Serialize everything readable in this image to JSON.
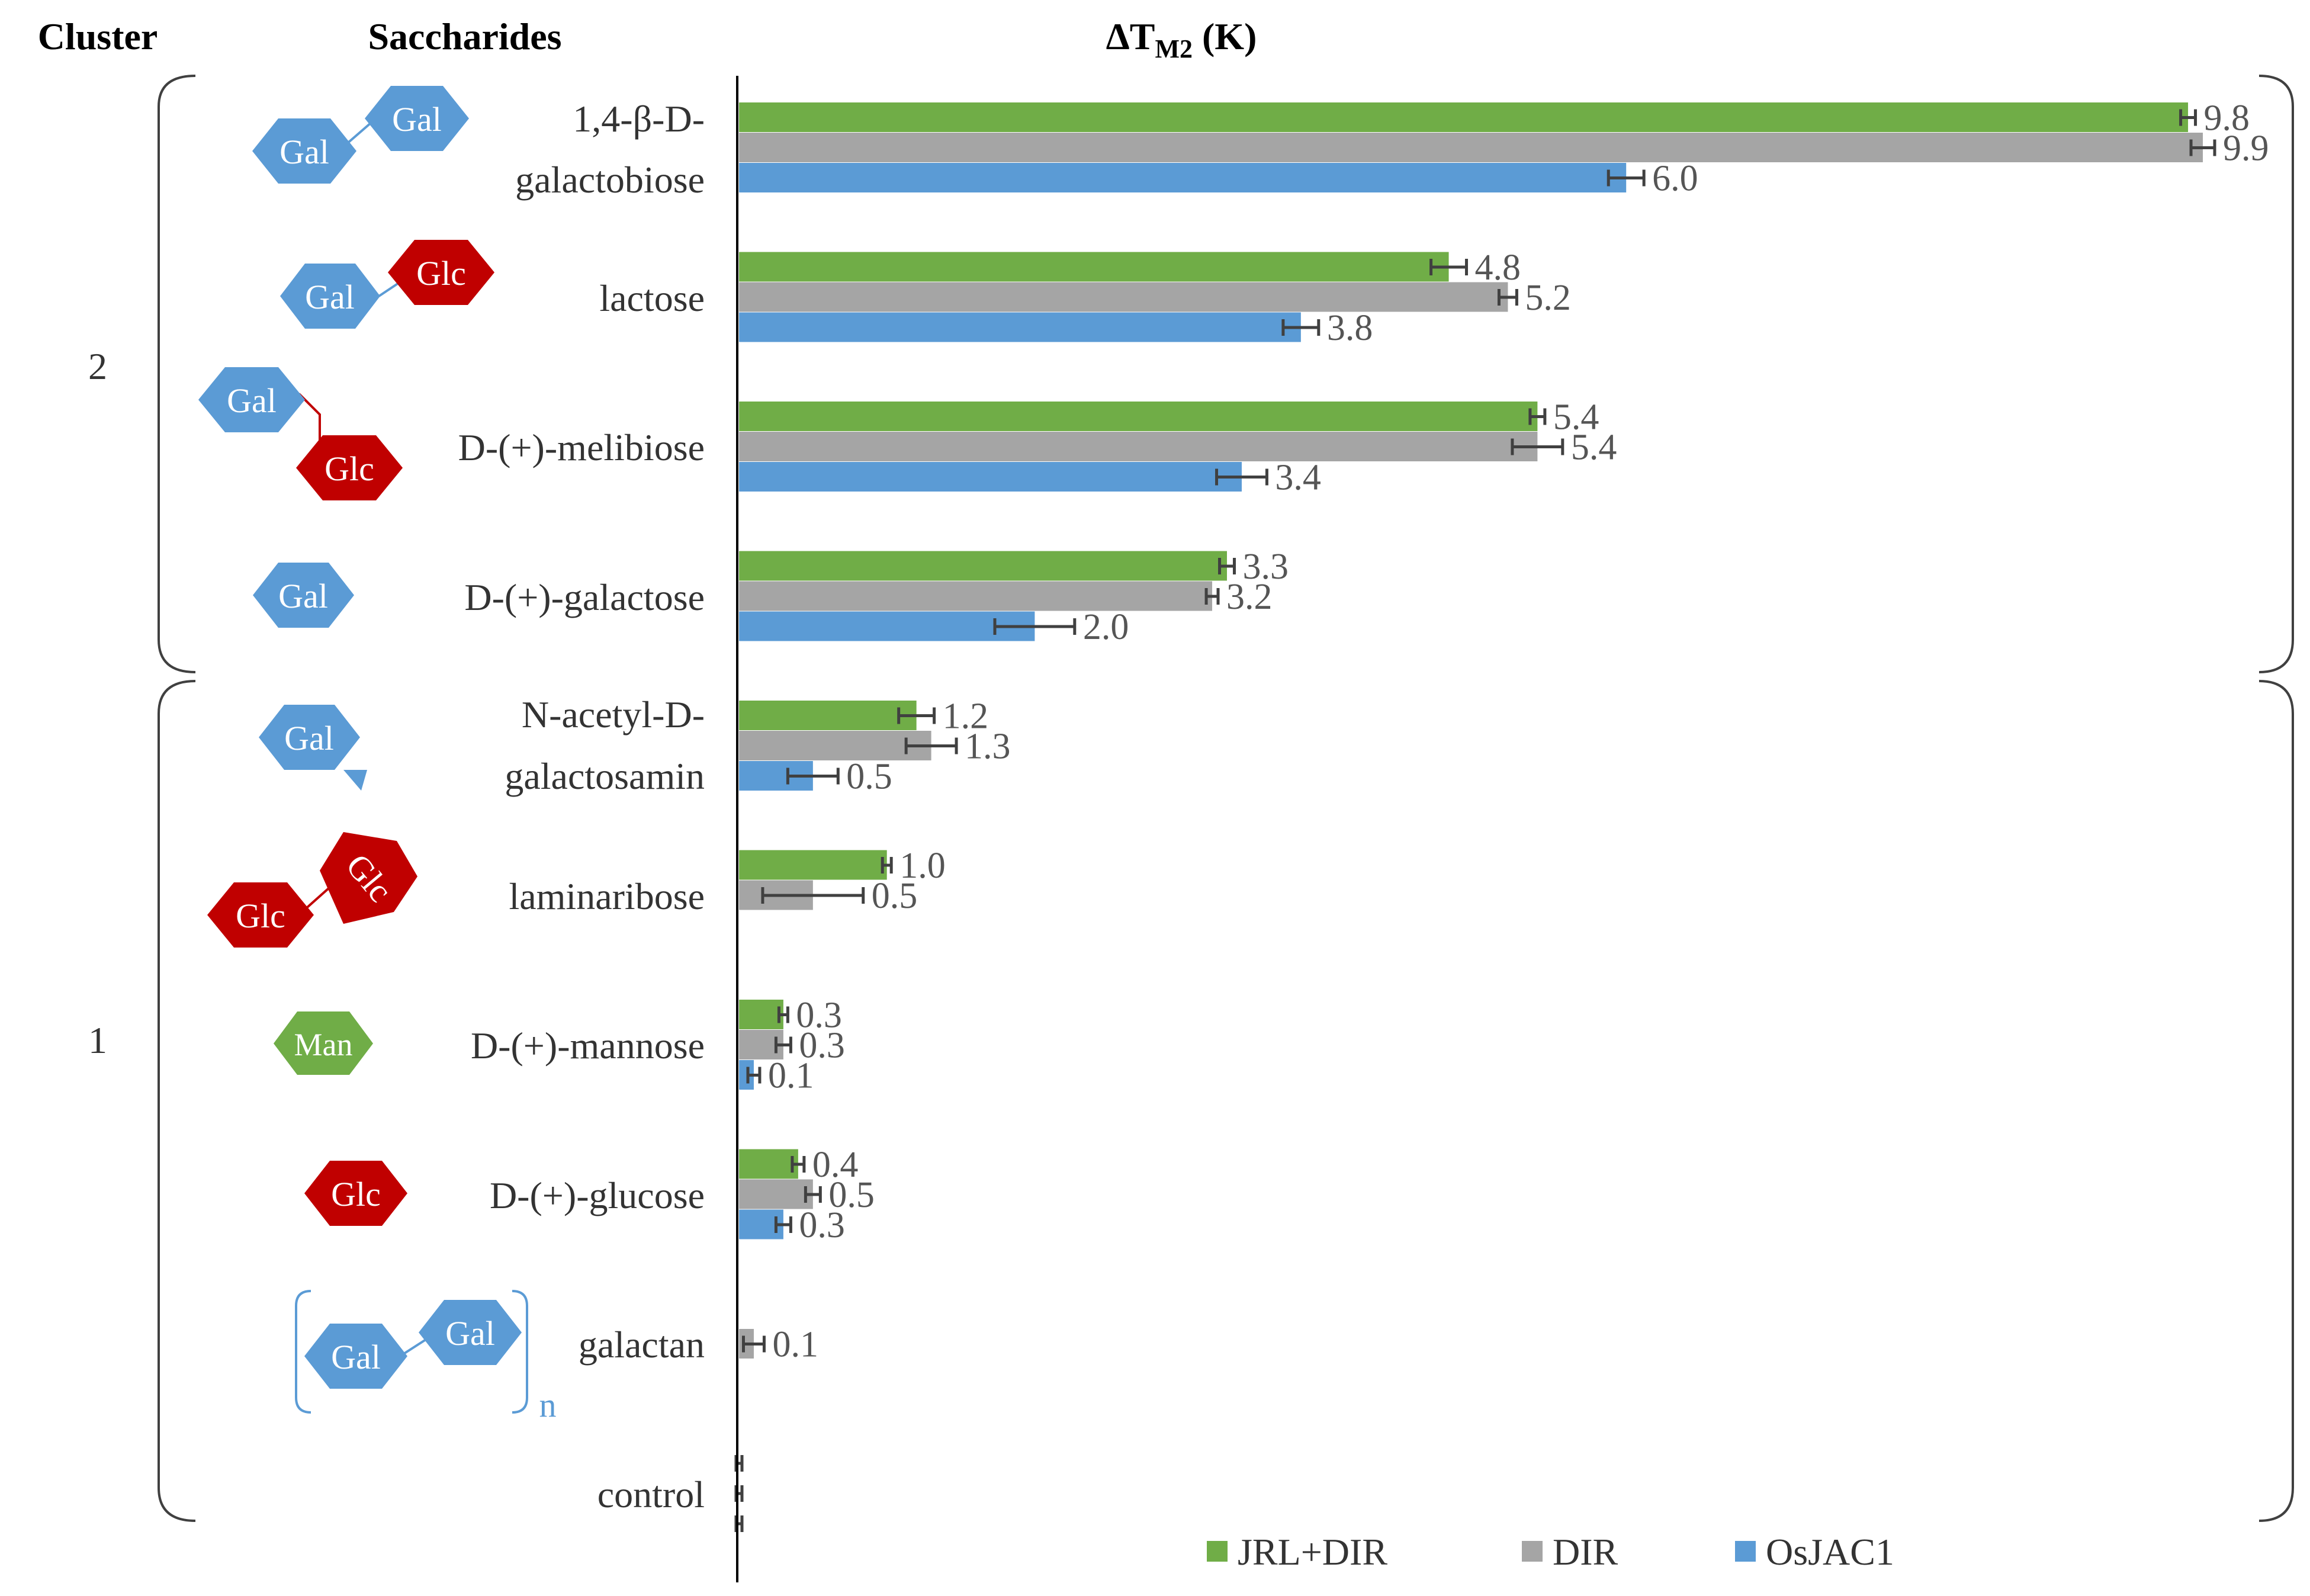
{
  "headers": {
    "cluster": "Cluster",
    "saccharides": "Saccharides",
    "axis_delta": "ΔT",
    "axis_sub": "M2",
    "axis_unit": " (K)"
  },
  "clusters": [
    {
      "label": "2",
      "rows": [
        0,
        3
      ]
    },
    {
      "label": "1",
      "rows": [
        4,
        9
      ]
    }
  ],
  "saccharide_lines": [
    [
      "1,4-β-D-",
      "galactobiose"
    ],
    [
      "lactose"
    ],
    [
      "D-(+)-melibiose"
    ],
    [
      "D-(+)-galactose"
    ],
    [
      "N-acetyl-D-",
      "galactosamin"
    ],
    [
      "laminaribose"
    ],
    [
      "D-(+)-mannose"
    ],
    [
      "D-(+)-glucose"
    ],
    [
      "galactan"
    ],
    [
      "control"
    ]
  ],
  "glyph_labels": {
    "gal": "Gal",
    "glc": "Glc",
    "man": "Man",
    "repeat_n": "n"
  },
  "colors": {
    "jrl_dir": "#70AD47",
    "dir": "#A5A5A5",
    "osjac1": "#5B9BD5",
    "gal": "#5B9BD5",
    "glc": "#C00000",
    "man": "#70AD47"
  },
  "legend": [
    "JRL+DIR",
    "DIR",
    "OsJAC1"
  ],
  "chart_data": {
    "type": "bar",
    "orientation": "horizontal",
    "title": "ΔTM2 (K)",
    "xlim": [
      0,
      10
    ],
    "categories": [
      "1,4-β-D-galactobiose",
      "lactose",
      "D-(+)-melibiose",
      "D-(+)-galactose",
      "N-acetyl-D-galactosamin",
      "laminaribose",
      "D-(+)-mannose",
      "D-(+)-glucose",
      "galactan",
      "control"
    ],
    "series": [
      {
        "name": "JRL+DIR",
        "values": [
          9.8,
          4.8,
          5.4,
          3.3,
          1.2,
          1.0,
          0.3,
          0.4,
          null,
          0
        ],
        "labels": [
          "9.8",
          "4.8",
          "5.4",
          "3.3",
          "1.2",
          "1.0",
          "0.3",
          "0.4",
          "",
          ""
        ],
        "errors": [
          0.05,
          0.12,
          0.05,
          0.05,
          0.12,
          0.03,
          0.03,
          0.04,
          null,
          0.02
        ]
      },
      {
        "name": "DIR",
        "values": [
          9.9,
          5.2,
          5.4,
          3.2,
          1.3,
          0.5,
          0.3,
          0.5,
          0.1,
          0
        ],
        "labels": [
          "9.9",
          "5.2",
          "5.4",
          "3.2",
          "1.3",
          "0.5",
          "0.3",
          "0.5",
          "0.1",
          ""
        ],
        "errors": [
          0.08,
          0.06,
          0.17,
          0.04,
          0.17,
          0.34,
          0.05,
          0.05,
          0.07,
          0.02
        ]
      },
      {
        "name": "OsJAC1",
        "values": [
          6.0,
          3.8,
          3.4,
          2.0,
          0.5,
          null,
          0.1,
          0.3,
          null,
          0
        ],
        "labels": [
          "6.0",
          "3.8",
          "3.4",
          "2.0",
          "0.5",
          "",
          "0.1",
          "0.3",
          "",
          ""
        ],
        "errors": [
          0.12,
          0.12,
          0.17,
          0.27,
          0.17,
          null,
          0.04,
          0.05,
          null,
          0.02
        ]
      }
    ]
  }
}
